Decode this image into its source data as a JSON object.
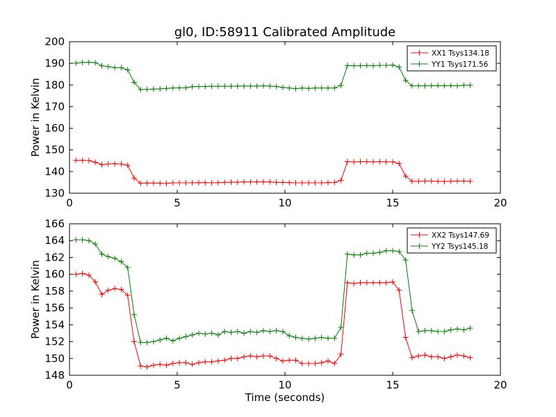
{
  "chart_data": [
    {
      "type": "line",
      "title": "gl0, ID:58911 Calibrated Amplitude",
      "xlabel": "",
      "ylabel": "Power in Kelvin",
      "xlim": [
        0,
        20
      ],
      "ylim": [
        130,
        200
      ],
      "xticks": [
        0,
        5,
        10,
        15,
        20
      ],
      "yticks": [
        130,
        140,
        150,
        160,
        170,
        180,
        190,
        200
      ],
      "legend": "top-right",
      "x": [
        0.3,
        0.6,
        0.9,
        1.2,
        1.5,
        1.8,
        2.1,
        2.4,
        2.7,
        3.0,
        3.3,
        3.6,
        3.9,
        4.2,
        4.5,
        4.8,
        5.1,
        5.4,
        5.7,
        6.0,
        6.3,
        6.6,
        6.9,
        7.2,
        7.5,
        7.8,
        8.1,
        8.4,
        8.7,
        9.0,
        9.3,
        9.6,
        9.9,
        10.2,
        10.5,
        10.8,
        11.1,
        11.4,
        11.7,
        12.0,
        12.3,
        12.6,
        12.9,
        13.2,
        13.5,
        13.8,
        14.1,
        14.4,
        14.7,
        15.0,
        15.3,
        15.6,
        15.9,
        16.2,
        16.5,
        16.8,
        17.1,
        17.4,
        17.7,
        18.0,
        18.3,
        18.6
      ],
      "series": [
        {
          "name": "XX1 Tsys134.18",
          "color": "#ff0000",
          "values": [
            145.2,
            145.2,
            145.1,
            144.3,
            143.2,
            143.5,
            143.6,
            143.5,
            142.9,
            137.0,
            134.6,
            134.7,
            134.7,
            134.6,
            134.5,
            134.8,
            134.8,
            134.8,
            134.8,
            134.9,
            134.9,
            134.8,
            134.9,
            135.0,
            135.1,
            135.1,
            135.2,
            135.2,
            135.2,
            135.2,
            135.2,
            135.0,
            135.0,
            134.9,
            134.8,
            134.8,
            134.8,
            134.8,
            134.8,
            134.9,
            135.0,
            135.9,
            144.6,
            144.4,
            144.6,
            144.6,
            144.5,
            144.6,
            144.5,
            144.5,
            143.7,
            137.9,
            135.5,
            135.5,
            135.6,
            135.6,
            135.5,
            135.4,
            135.5,
            135.6,
            135.6,
            135.5
          ]
        },
        {
          "name": "YY1 Tsys171.56",
          "color": "#008000",
          "values": [
            190.1,
            190.4,
            190.5,
            190.3,
            188.9,
            188.5,
            188.0,
            188.0,
            187.0,
            181.2,
            177.9,
            178.0,
            178.1,
            178.2,
            178.4,
            178.6,
            178.7,
            178.7,
            179.2,
            179.3,
            179.3,
            179.4,
            179.4,
            179.4,
            179.4,
            179.5,
            179.5,
            179.5,
            179.5,
            179.6,
            179.5,
            179.3,
            178.9,
            178.6,
            178.3,
            178.6,
            178.4,
            178.6,
            178.6,
            178.6,
            178.6,
            179.8,
            189.0,
            188.9,
            188.9,
            189.0,
            188.9,
            189.1,
            189.1,
            189.2,
            188.3,
            182.1,
            179.6,
            179.6,
            179.6,
            179.7,
            179.7,
            179.7,
            179.7,
            179.6,
            179.9,
            179.9
          ]
        }
      ]
    },
    {
      "type": "line",
      "title": "",
      "xlabel": "Time (seconds)",
      "ylabel": "Power in Kelvin",
      "xlim": [
        0,
        20
      ],
      "ylim": [
        148,
        166
      ],
      "xticks": [
        0,
        5,
        10,
        15,
        20
      ],
      "yticks": [
        148,
        150,
        152,
        154,
        156,
        158,
        160,
        162,
        164,
        166
      ],
      "legend": "top-right",
      "x": [
        0.3,
        0.6,
        0.9,
        1.2,
        1.5,
        1.8,
        2.1,
        2.4,
        2.7,
        3.0,
        3.3,
        3.6,
        3.9,
        4.2,
        4.5,
        4.8,
        5.1,
        5.4,
        5.7,
        6.0,
        6.3,
        6.6,
        6.9,
        7.2,
        7.5,
        7.8,
        8.1,
        8.4,
        8.7,
        9.0,
        9.3,
        9.6,
        9.9,
        10.2,
        10.5,
        10.8,
        11.1,
        11.4,
        11.7,
        12.0,
        12.3,
        12.6,
        12.9,
        13.2,
        13.5,
        13.8,
        14.1,
        14.4,
        14.7,
        15.0,
        15.3,
        15.6,
        15.9,
        16.2,
        16.5,
        16.8,
        17.1,
        17.4,
        17.7,
        18.0,
        18.3,
        18.6
      ],
      "series": [
        {
          "name": "XX2 Tsys147.69",
          "color": "#ff0000",
          "values": [
            160.0,
            160.1,
            159.9,
            159.1,
            157.6,
            158.1,
            158.3,
            158.2,
            157.5,
            152.0,
            149.1,
            149.0,
            149.2,
            149.3,
            149.2,
            149.4,
            149.5,
            149.5,
            149.3,
            149.5,
            149.6,
            149.6,
            149.7,
            149.8,
            150.0,
            150.0,
            150.2,
            150.3,
            150.2,
            150.3,
            150.3,
            150.0,
            149.7,
            149.8,
            149.8,
            149.4,
            149.4,
            149.4,
            149.5,
            149.7,
            149.4,
            150.5,
            159.0,
            158.9,
            159.0,
            159.0,
            159.0,
            159.0,
            159.0,
            159.1,
            158.1,
            152.5,
            150.1,
            150.3,
            150.4,
            150.2,
            150.2,
            150.0,
            150.2,
            150.4,
            150.3,
            150.1
          ]
        },
        {
          "name": "YY2 Tsys145.18",
          "color": "#008000",
          "values": [
            164.1,
            164.1,
            164.0,
            163.6,
            162.4,
            162.1,
            161.9,
            161.5,
            160.8,
            155.2,
            151.9,
            151.9,
            152.0,
            152.2,
            152.4,
            152.1,
            152.4,
            152.6,
            152.8,
            153.0,
            152.9,
            153.0,
            152.8,
            153.2,
            153.1,
            153.2,
            153.0,
            153.2,
            153.1,
            153.3,
            153.2,
            153.3,
            153.2,
            152.7,
            152.5,
            152.4,
            152.3,
            152.4,
            152.5,
            152.4,
            152.4,
            153.7,
            162.4,
            162.3,
            162.3,
            162.5,
            162.5,
            162.6,
            162.8,
            162.8,
            162.7,
            161.7,
            155.7,
            153.2,
            153.3,
            153.3,
            153.2,
            153.2,
            153.4,
            153.5,
            153.4,
            153.6
          ]
        }
      ]
    }
  ]
}
